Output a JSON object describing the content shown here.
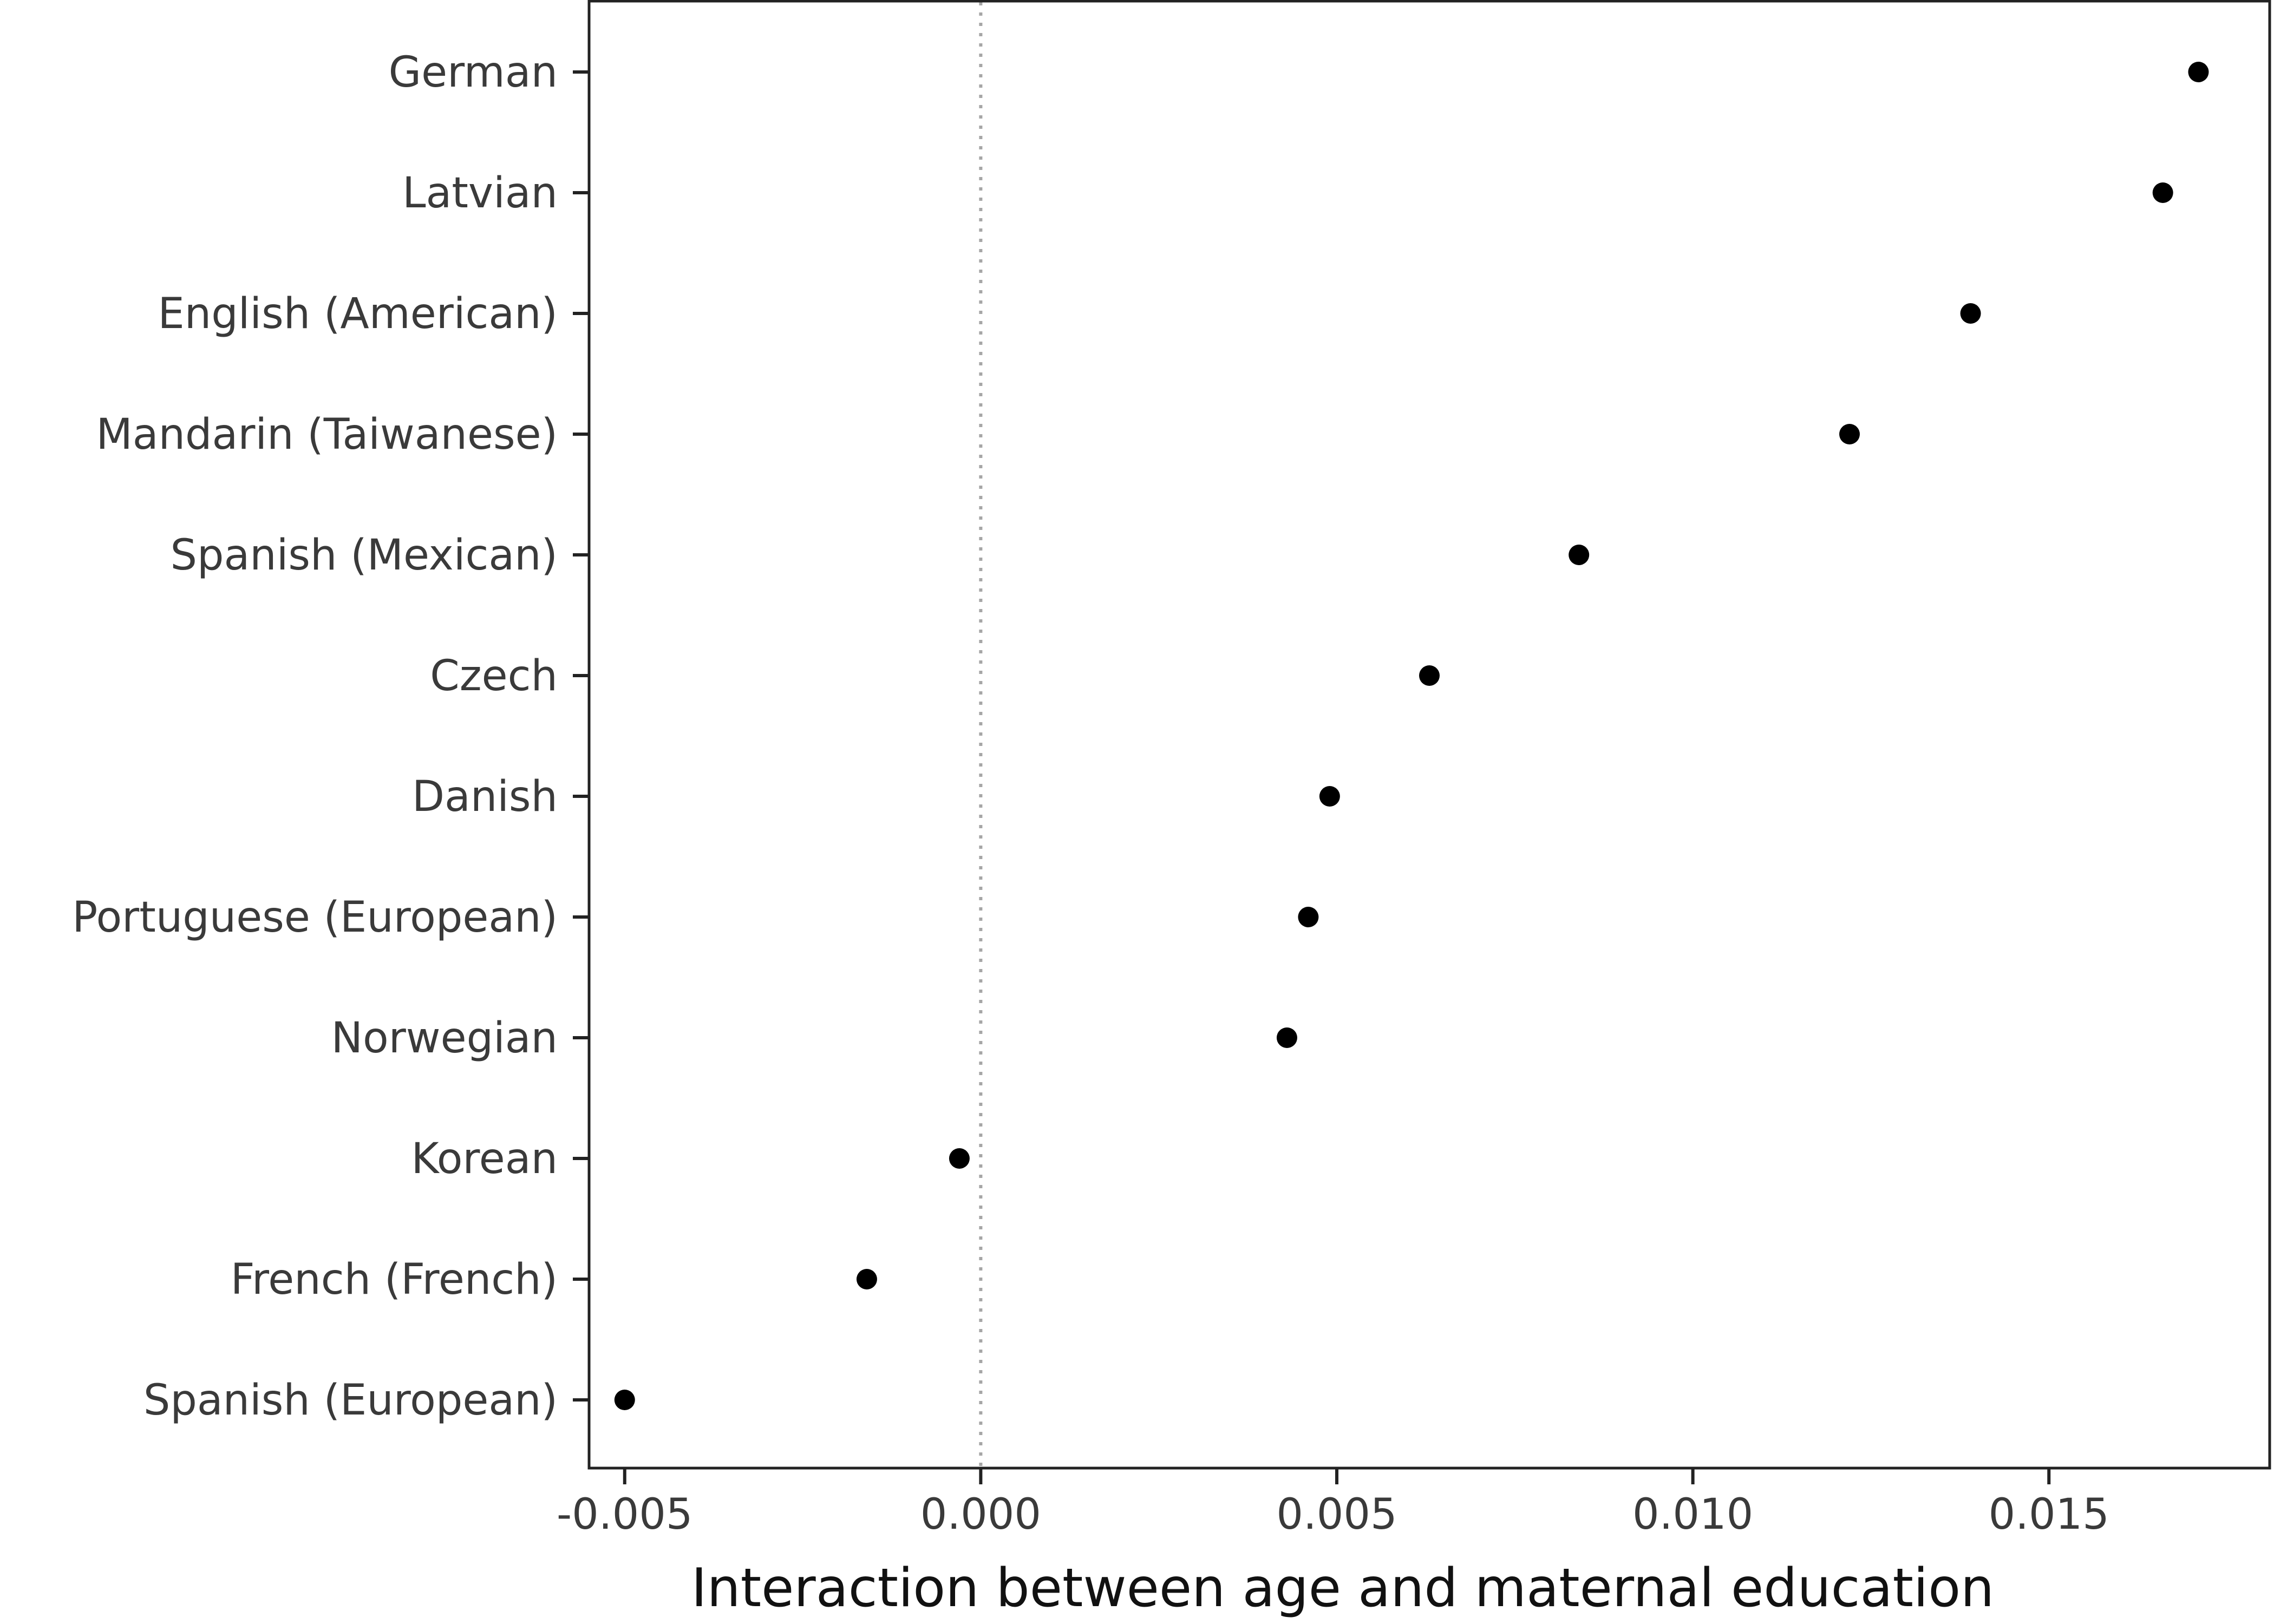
{
  "chart_data": {
    "type": "scatter",
    "title": "",
    "xlabel": "Interaction between age and maternal education",
    "ylabel": "",
    "xlim": [
      -0.0055,
      0.0181
    ],
    "x_ticks": [
      {
        "value": -0.005,
        "label": "-0.005"
      },
      {
        "value": 0.0,
        "label": "0.000"
      },
      {
        "value": 0.005,
        "label": "0.005"
      },
      {
        "value": 0.01,
        "label": "0.010"
      },
      {
        "value": 0.015,
        "label": "0.015"
      }
    ],
    "reference_line": {
      "x": 0.0,
      "style": "dotted",
      "color": "#a6a6a6"
    },
    "categories": [
      "German",
      "Latvian",
      "English (American)",
      "Mandarin (Taiwanese)",
      "Spanish (Mexican)",
      "Czech",
      "Danish",
      "Portuguese (European)",
      "Norwegian",
      "Korean",
      "French (French)",
      "Spanish (European)"
    ],
    "values": [
      0.0171,
      0.0166,
      0.0139,
      0.0122,
      0.0084,
      0.0063,
      0.0049,
      0.0046,
      0.0043,
      -0.0003,
      -0.0016,
      -0.005
    ],
    "grid": false,
    "legend": "none",
    "colors": {
      "point": "#000000",
      "axis": "#222222",
      "reference": "#a6a6a6"
    }
  }
}
